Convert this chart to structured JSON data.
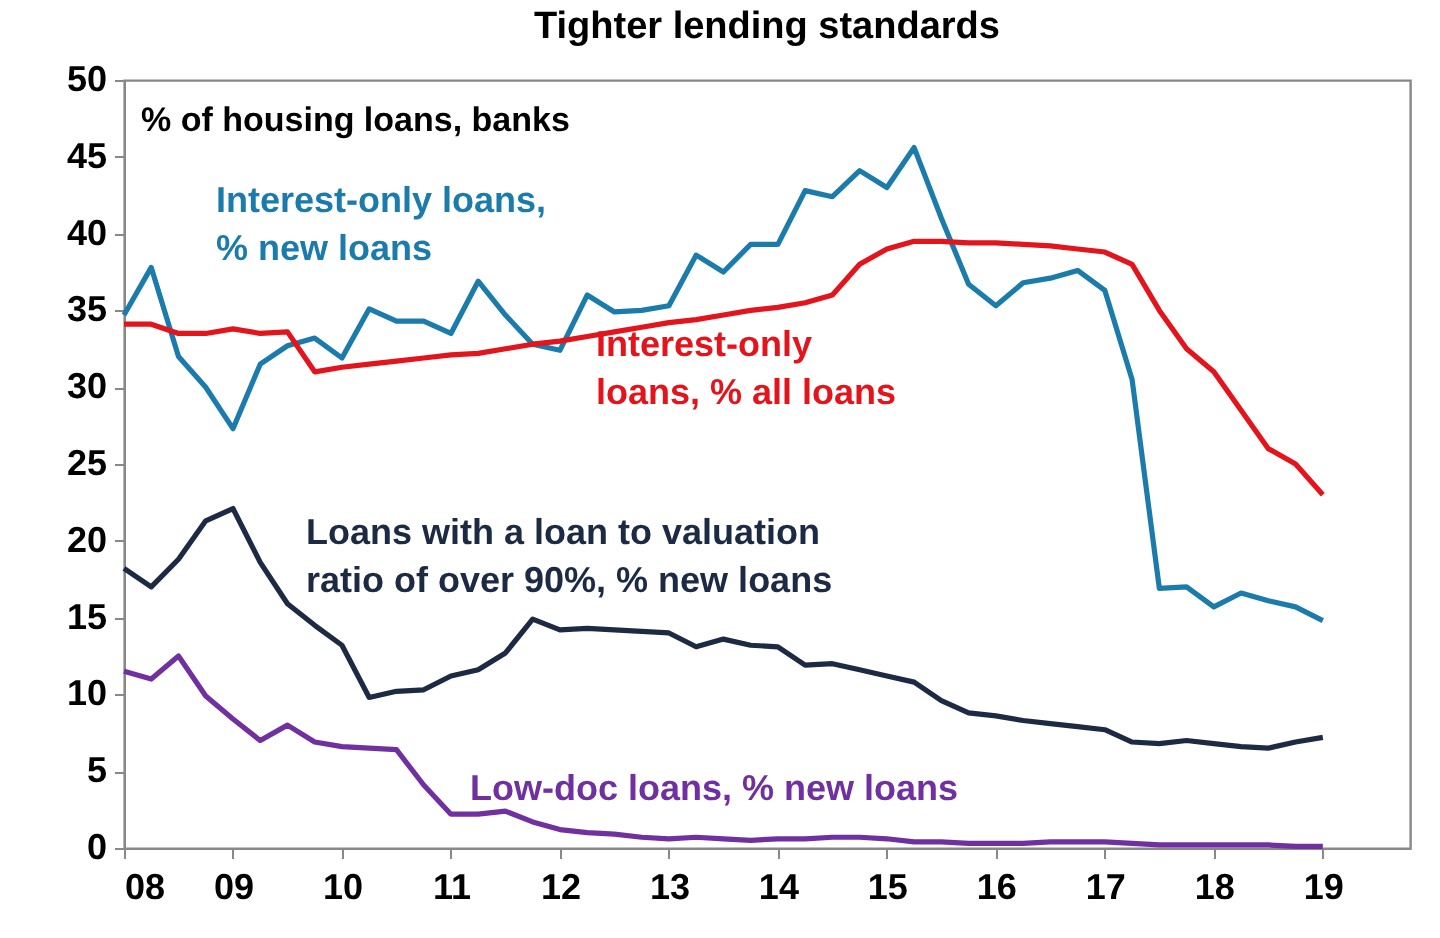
{
  "chart_data": {
    "type": "line",
    "title": "Tighter lending standards",
    "ylabel": "% of housing loans, banks",
    "x": [
      2008,
      2008.25,
      2008.5,
      2008.75,
      2009,
      2009.25,
      2009.5,
      2009.75,
      2010,
      2010.25,
      2010.5,
      2010.75,
      2011,
      2011.25,
      2011.5,
      2011.75,
      2012,
      2012.25,
      2012.5,
      2012.75,
      2013,
      2013.25,
      2013.5,
      2013.75,
      2014,
      2014.25,
      2014.5,
      2014.75,
      2015,
      2015.25,
      2015.5,
      2015.75,
      2016,
      2016.25,
      2016.5,
      2016.75,
      2017,
      2017.25,
      2017.5,
      2017.75,
      2018,
      2018.25,
      2018.5,
      2018.75,
      2019
    ],
    "series": [
      {
        "name": "Interest-only loans, % new loans",
        "color": "#1b7bab",
        "values": [
          34.7,
          37.8,
          32,
          30,
          27.3,
          31.5,
          32.7,
          33.2,
          31.9,
          35.1,
          34.3,
          34.3,
          33.5,
          36.9,
          34.7,
          32.8,
          32.4,
          36,
          34.9,
          35,
          35.3,
          38.6,
          37.5,
          39.3,
          39.3,
          42.8,
          42.4,
          44.1,
          43,
          45.6,
          41,
          36.7,
          35.3,
          36.8,
          37.1,
          37.6,
          36.3,
          30.5,
          16.9,
          17,
          15.7,
          16.6,
          16.1,
          15.7,
          14.8
        ]
      },
      {
        "name": "Interest-only loans, % all loans",
        "color": "#e3141b",
        "values": [
          34.1,
          34.1,
          33.5,
          33.5,
          33.8,
          33.5,
          33.6,
          31,
          31.3,
          31.5,
          31.7,
          31.9,
          32.1,
          32.2,
          32.5,
          32.8,
          33,
          33.3,
          33.6,
          33.9,
          34.2,
          34.4,
          34.7,
          35,
          35.2,
          35.5,
          36,
          38,
          39,
          39.5,
          39.5,
          39.4,
          39.4,
          39.3,
          39.2,
          39,
          38.8,
          38,
          35,
          32.5,
          31,
          28.5,
          26,
          25,
          23
        ]
      },
      {
        "name": "Loans with a loan to valuation ratio of over 90%, % new loans",
        "color": "#1c2a44",
        "values": [
          18.2,
          17,
          18.8,
          21.3,
          22.1,
          18.6,
          15.9,
          14.5,
          13.2,
          9.8,
          10.2,
          10.3,
          11.2,
          11.6,
          12.7,
          14.9,
          14.2,
          14.3,
          14.2,
          14.1,
          14,
          13.1,
          13.6,
          13.2,
          13.1,
          11.9,
          12,
          11.6,
          11.2,
          10.8,
          9.6,
          8.8,
          8.6,
          8.3,
          8.1,
          7.9,
          7.7,
          6.9,
          6.8,
          7,
          6.8,
          6.6,
          6.5,
          6.9,
          7.2
        ]
      },
      {
        "name": "Low-doc loans, % new loans",
        "color": "#7030a0",
        "values": [
          11.5,
          11,
          12.5,
          9.9,
          8.4,
          7,
          8,
          6.9,
          6.6,
          6.5,
          6.4,
          4.1,
          2.2,
          2.2,
          2.4,
          1.7,
          1.2,
          1,
          0.9,
          0.7,
          0.6,
          0.7,
          0.6,
          0.5,
          0.6,
          0.6,
          0.7,
          0.7,
          0.6,
          0.4,
          0.4,
          0.3,
          0.3,
          0.3,
          0.4,
          0.4,
          0.4,
          0.3,
          0.2,
          0.2,
          0.2,
          0.2,
          0.2,
          0.1,
          0.1
        ]
      }
    ],
    "xlim": [
      2008,
      2019.8
    ],
    "xticks": [
      {
        "value": 2008,
        "label": "08"
      },
      {
        "value": 2009,
        "label": "09"
      },
      {
        "value": 2010,
        "label": "10"
      },
      {
        "value": 2011,
        "label": "11"
      },
      {
        "value": 2012,
        "label": "12"
      },
      {
        "value": 2013,
        "label": "13"
      },
      {
        "value": 2014,
        "label": "14"
      },
      {
        "value": 2015,
        "label": "15"
      },
      {
        "value": 2016,
        "label": "16"
      },
      {
        "value": 2017,
        "label": "17"
      },
      {
        "value": 2018,
        "label": "18"
      },
      {
        "value": 2019,
        "label": "19"
      }
    ],
    "ylim": [
      0,
      50
    ],
    "yticks": [
      0,
      5,
      10,
      15,
      20,
      25,
      30,
      35,
      40,
      45,
      50
    ],
    "grid": false,
    "legend": false,
    "marker": "none",
    "line_style": "solid"
  }
}
